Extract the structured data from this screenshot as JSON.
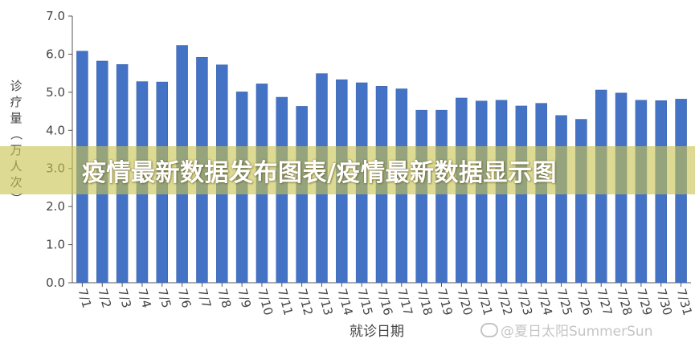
{
  "chart_data": {
    "type": "bar",
    "xlabel": "就诊日期",
    "ylabel": "诊疗量（万人次）",
    "ylim": [
      0,
      7
    ],
    "yticks": [
      "0.0",
      "1.0",
      "2.0",
      "3.0",
      "4.0",
      "5.0",
      "6.0",
      "7.0"
    ],
    "categories": [
      "7/1",
      "7/2",
      "7/3",
      "7/4",
      "7/5",
      "7/6",
      "7/7",
      "7/8",
      "7/9",
      "7/10",
      "7/11",
      "7/12",
      "7/13",
      "7/14",
      "7/15",
      "7/16",
      "7/17",
      "7/18",
      "7/19",
      "7/20",
      "7/21",
      "7/22",
      "7/23",
      "7/24",
      "7/25",
      "7/26",
      "7/27",
      "7/28",
      "7/29",
      "7/30",
      "7/31"
    ],
    "values": [
      6.08,
      5.82,
      5.73,
      5.28,
      5.27,
      6.23,
      5.92,
      5.72,
      5.01,
      5.22,
      4.87,
      4.63,
      5.49,
      5.33,
      5.25,
      5.16,
      5.09,
      4.53,
      4.53,
      4.85,
      4.77,
      4.79,
      4.64,
      4.71,
      4.39,
      4.29,
      5.06,
      4.98,
      4.79,
      4.78,
      4.82
    ],
    "grid": false,
    "bar_color": "#4472c4"
  },
  "banner": {
    "title": "疫情最新数据发布图表/疫情最新数据显示图"
  },
  "watermark": {
    "text": "@夏日太阳SummerSun"
  }
}
